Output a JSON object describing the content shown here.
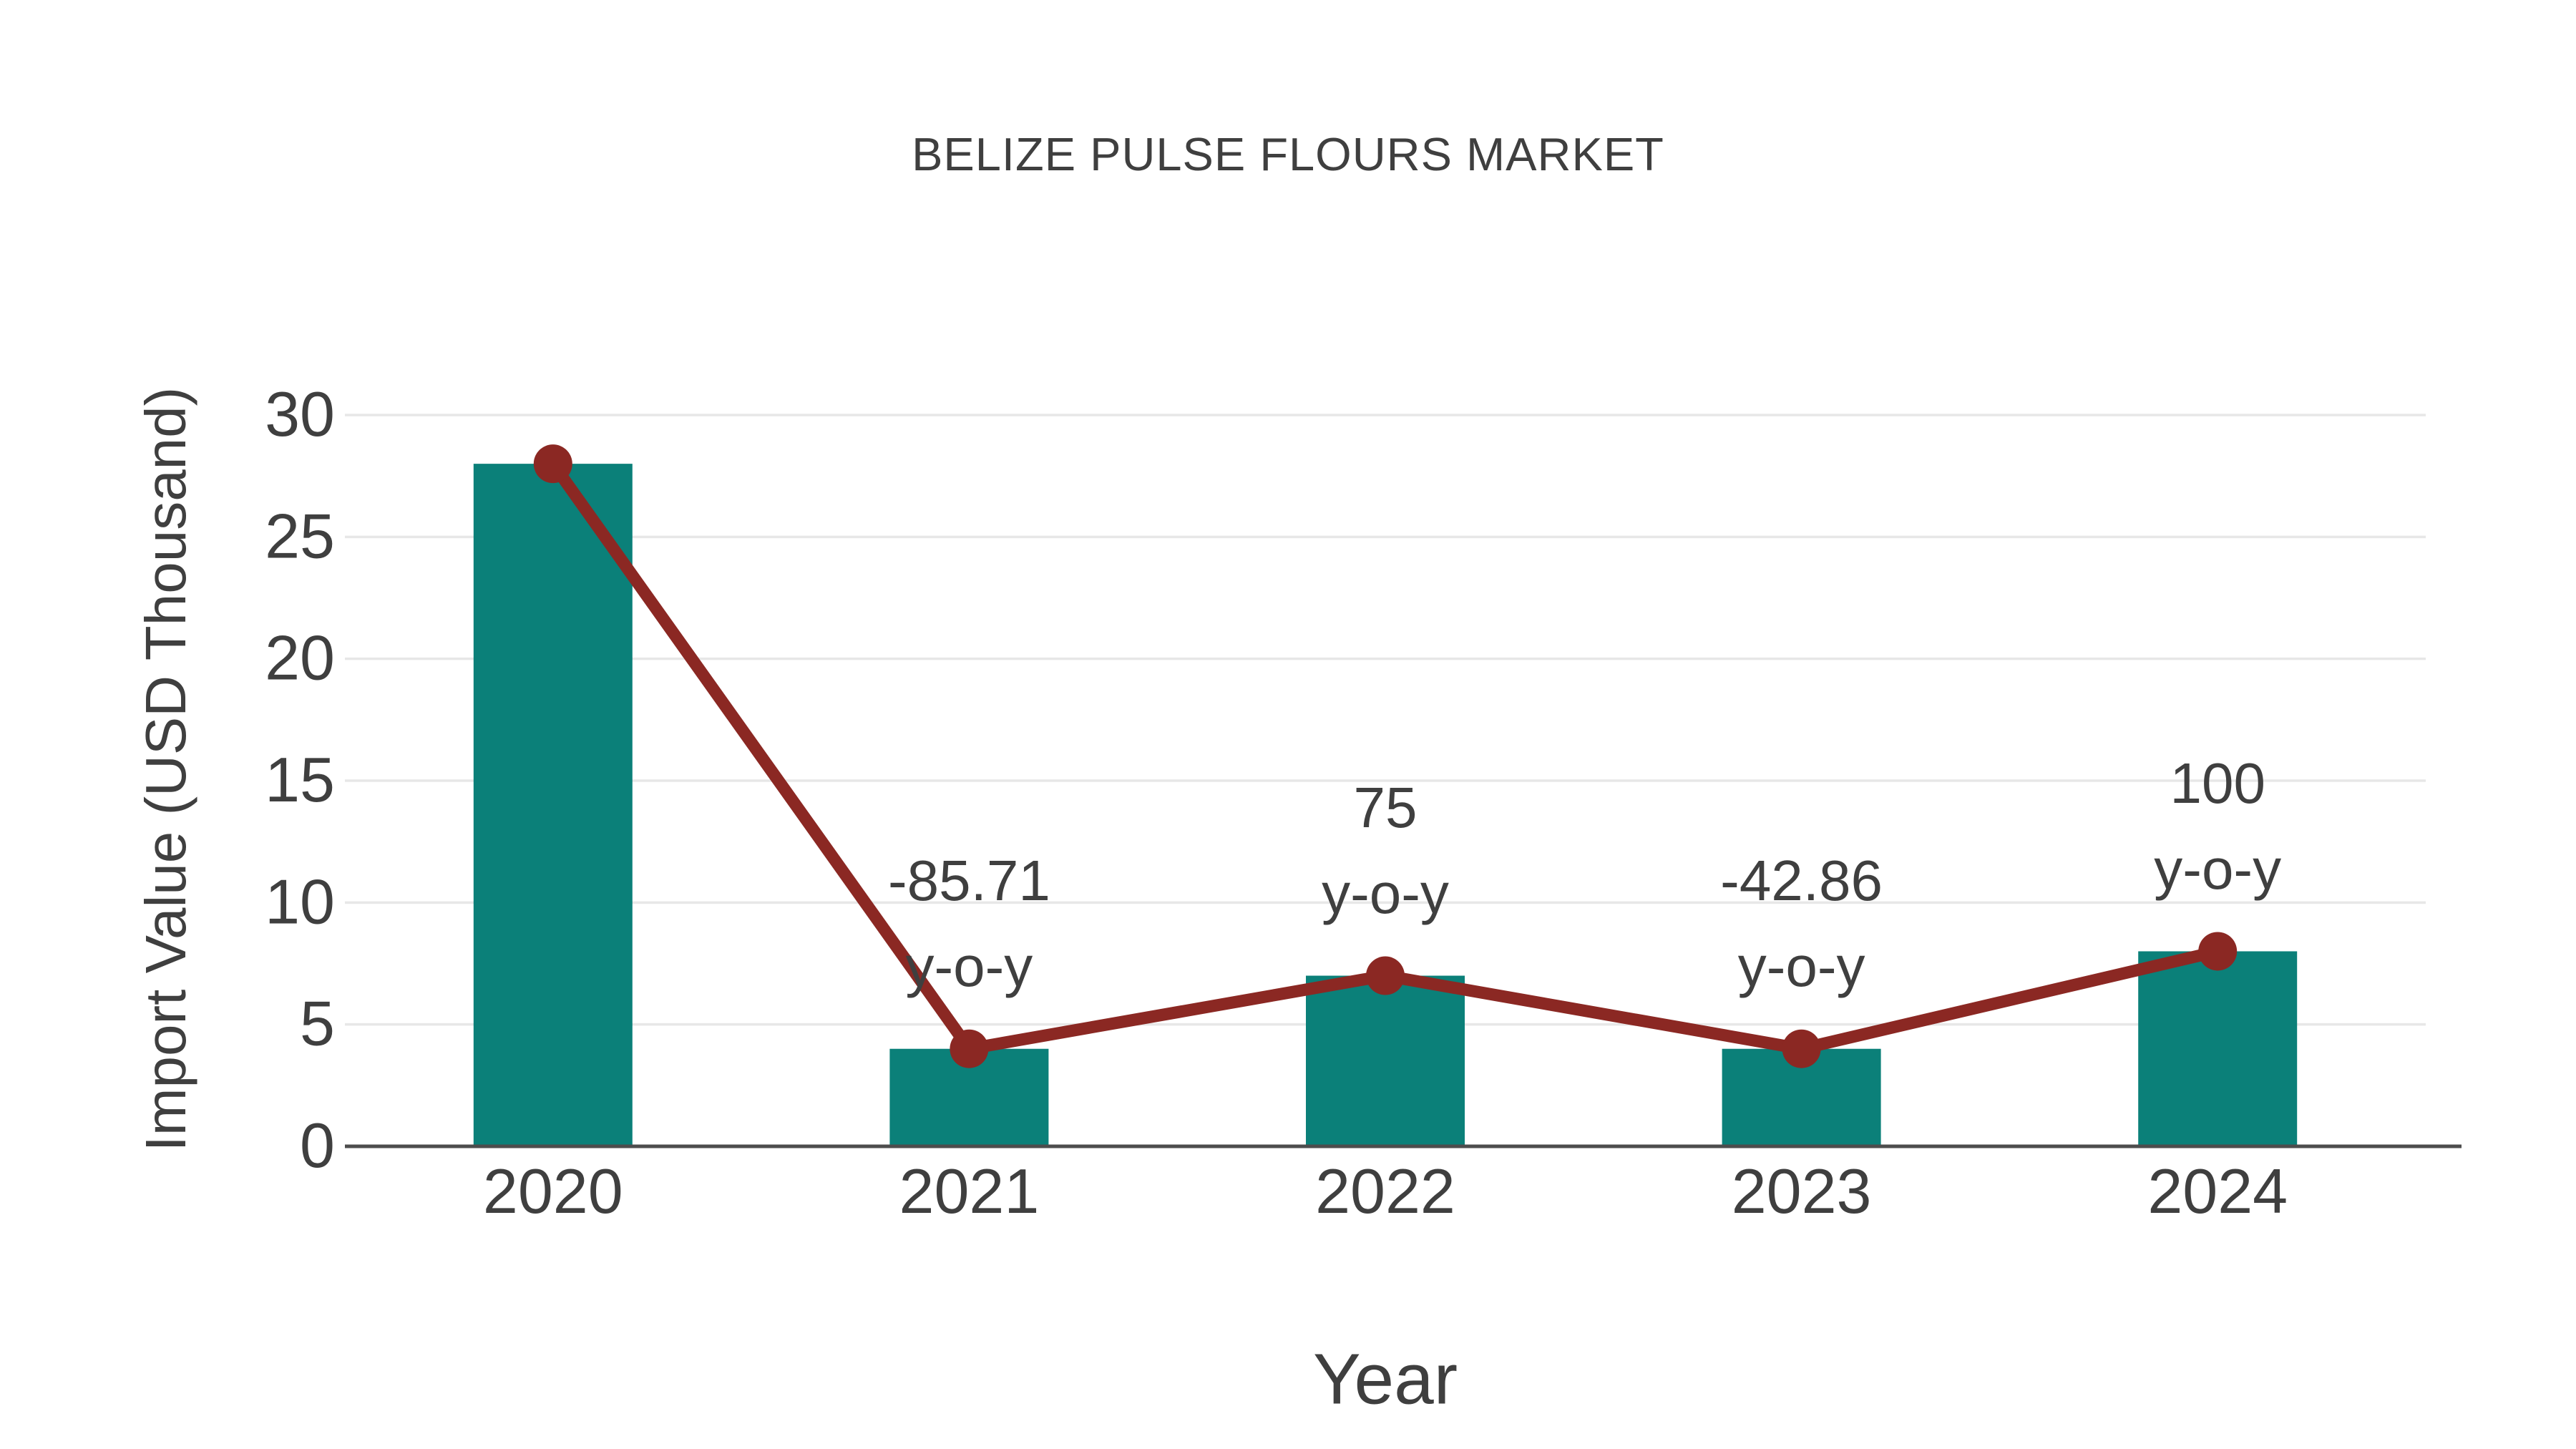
{
  "chart_data": {
    "type": "bar",
    "title": "BELIZE PULSE FLOURS MARKET",
    "xlabel": "Year",
    "ylabel": "Import Value (USD Thousand)",
    "categories": [
      "2020",
      "2021",
      "2022",
      "2023",
      "2024"
    ],
    "series": [
      {
        "name": "Import Value (USD Thousand)",
        "type": "bar",
        "values": [
          28,
          4,
          7,
          4,
          8
        ]
      },
      {
        "name": "y-o-y trend line",
        "type": "line",
        "values": [
          28,
          4,
          7,
          4,
          8
        ]
      }
    ],
    "annotations": [
      {
        "category": "2021",
        "lines": [
          "-85.71",
          "y-o-y"
        ]
      },
      {
        "category": "2022",
        "lines": [
          "75",
          "y-o-y"
        ]
      },
      {
        "category": "2023",
        "lines": [
          "-42.86",
          "y-o-y"
        ]
      },
      {
        "category": "2024",
        "lines": [
          "100",
          "y-o-y"
        ]
      }
    ],
    "yticks": [
      0,
      5,
      10,
      15,
      20,
      25,
      30
    ],
    "ylim": [
      0,
      30
    ],
    "grid": true,
    "legend": "none",
    "colors": {
      "bar": "#0b8079",
      "line": "#8b2823",
      "marker": "#8b2823",
      "grid": "#e7e7e7",
      "axis": "#4d4d4d",
      "text": "#3f3f3f",
      "title": "#3f3f3f",
      "background": "#ffffff"
    }
  }
}
